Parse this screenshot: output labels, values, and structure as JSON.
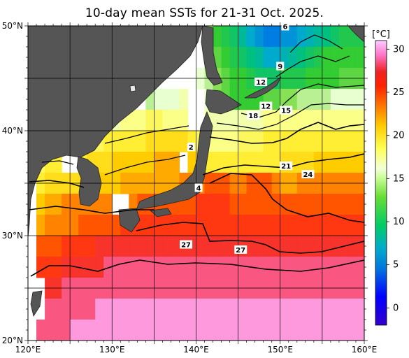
{
  "title": "10-day mean SSTs for 21-31 Oct. 2025.",
  "map": {
    "lon_ticks": [
      {
        "lon": 120,
        "label": "120°E"
      },
      {
        "lon": 130,
        "label": "130°E"
      },
      {
        "lon": 140,
        "label": "140°E"
      },
      {
        "lon": 150,
        "label": "150°E"
      },
      {
        "lon": 160,
        "label": "160°E"
      }
    ],
    "lat_ticks": [
      {
        "lat": 50,
        "label": "50°N"
      },
      {
        "lat": 40,
        "label": "40°N"
      },
      {
        "lat": 30,
        "label": "30°N"
      },
      {
        "lat": 20,
        "label": "20°N"
      }
    ],
    "lon_range": [
      120,
      160
    ],
    "lat_range": [
      20,
      50
    ],
    "land_color": "#555555",
    "grid_color": "#000000"
  },
  "colorbar": {
    "unit": "[°C]",
    "range": [
      -2,
      31
    ],
    "ticks": [
      {
        "value": 0,
        "label": "0"
      },
      {
        "value": 5,
        "label": "5"
      },
      {
        "value": 10,
        "label": "10"
      },
      {
        "value": 15,
        "label": "15"
      },
      {
        "value": 20,
        "label": "20"
      },
      {
        "value": 25,
        "label": "25"
      },
      {
        "value": 30,
        "label": "30"
      }
    ]
  },
  "contour_labels": [
    {
      "text": "6",
      "lon": 150.6,
      "lat": 49.9
    },
    {
      "text": "9",
      "lon": 150.0,
      "lat": 46.1
    },
    {
      "text": "12",
      "lon": 147.7,
      "lat": 44.6
    },
    {
      "text": "12",
      "lon": 148.3,
      "lat": 42.3
    },
    {
      "text": "15",
      "lon": 150.7,
      "lat": 41.9
    },
    {
      "text": "18",
      "lon": 146.8,
      "lat": 41.4
    },
    {
      "text": "2",
      "lon": 139.4,
      "lat": 38.4
    },
    {
      "text": "21",
      "lon": 150.7,
      "lat": 36.6
    },
    {
      "text": "24",
      "lon": 153.3,
      "lat": 35.8
    },
    {
      "text": "4",
      "lon": 140.3,
      "lat": 34.5
    },
    {
      "text": "27",
      "lon": 138.8,
      "lat": 29.1
    },
    {
      "text": "27",
      "lon": 145.3,
      "lat": 28.6
    }
  ],
  "sst_field": [
    {
      "lat": 49,
      "values": [
        null,
        null,
        null,
        null,
        null,
        null,
        null,
        null,
        null,
        null,
        null,
        null,
        null,
        null,
        null,
        null,
        null,
        null,
        null,
        null,
        null,
        14,
        12,
        11,
        10,
        8,
        6,
        5,
        4,
        4,
        5,
        5,
        6,
        7,
        8,
        9,
        10,
        11,
        11,
        11
      ]
    },
    {
      "lat": 47,
      "values": [
        null,
        null,
        null,
        null,
        null,
        null,
        null,
        null,
        null,
        null,
        null,
        null,
        null,
        null,
        null,
        null,
        null,
        null,
        null,
        null,
        null,
        14,
        13,
        12,
        11,
        10,
        9,
        8,
        6,
        6,
        7,
        8,
        9,
        10,
        11,
        12,
        12,
        12,
        12,
        12
      ]
    },
    {
      "lat": 45,
      "values": [
        null,
        null,
        null,
        null,
        null,
        null,
        null,
        null,
        null,
        null,
        null,
        null,
        null,
        null,
        null,
        null,
        null,
        null,
        null,
        null,
        16,
        15,
        14,
        13,
        12,
        12,
        11,
        10,
        10,
        10,
        11,
        11,
        11,
        12,
        12,
        12,
        12,
        13,
        13,
        13
      ]
    },
    {
      "lat": 43,
      "values": [
        null,
        null,
        null,
        null,
        null,
        null,
        null,
        null,
        null,
        null,
        null,
        null,
        null,
        null,
        15,
        16,
        16,
        16,
        17,
        null,
        null,
        16,
        14,
        13,
        12,
        12,
        12,
        12,
        13,
        13,
        14,
        14,
        15,
        15,
        15,
        15,
        16,
        16,
        16,
        16
      ]
    },
    {
      "lat": 41,
      "values": [
        null,
        null,
        null,
        null,
        null,
        null,
        18,
        18,
        18,
        17,
        17,
        18,
        18,
        18,
        19,
        19,
        18,
        18,
        18,
        null,
        null,
        17,
        17,
        17,
        17,
        17,
        17,
        17,
        18,
        18,
        18,
        18,
        18,
        18,
        18,
        18,
        18,
        18,
        18,
        18
      ]
    },
    {
      "lat": 39,
      "values": [
        null,
        null,
        20,
        20,
        null,
        null,
        19,
        19,
        19,
        20,
        20,
        20,
        20,
        20,
        21,
        21,
        21,
        21,
        21,
        20,
        19,
        18,
        18,
        18,
        18,
        19,
        19,
        19,
        20,
        20,
        20,
        20,
        20,
        20,
        20,
        20,
        20,
        20,
        20,
        20
      ]
    },
    {
      "lat": 37,
      "values": [
        null,
        19,
        20,
        20,
        null,
        null,
        20,
        21,
        21,
        21,
        22,
        22,
        22,
        22,
        22,
        23,
        23,
        23,
        null,
        22,
        21,
        20,
        20,
        20,
        20,
        20,
        20,
        20,
        20,
        20,
        21,
        21,
        21,
        21,
        22,
        22,
        22,
        22,
        22,
        22
      ]
    },
    {
      "lat": 35,
      "values": [
        null,
        20,
        21,
        21,
        21,
        21,
        21,
        22,
        22,
        22,
        22,
        23,
        23,
        23,
        23,
        23,
        23,
        23,
        24,
        24,
        24,
        25,
        25,
        25,
        24,
        24,
        25,
        25,
        25,
        24,
        23,
        23,
        24,
        24,
        24,
        24,
        24,
        24,
        24,
        24
      ]
    },
    {
      "lat": 33,
      "values": [
        null,
        22,
        23,
        23,
        24,
        24,
        24,
        24,
        24,
        24,
        null,
        null,
        24,
        25,
        25,
        25,
        25,
        25,
        25,
        25,
        26,
        26,
        26,
        26,
        25,
        25,
        25,
        25,
        25,
        25,
        25,
        25,
        25,
        25,
        25,
        25,
        25,
        25,
        25,
        25
      ]
    },
    {
      "lat": 31,
      "values": [
        null,
        23,
        24,
        24,
        24,
        24,
        25,
        25,
        25,
        25,
        25,
        26,
        26,
        26,
        26,
        26,
        26,
        26,
        26,
        26,
        26,
        26,
        26,
        26,
        26,
        26,
        26,
        26,
        26,
        26,
        26,
        26,
        26,
        26,
        26,
        26,
        26,
        26,
        26,
        26
      ]
    },
    {
      "lat": 29,
      "values": [
        null,
        25,
        25,
        25,
        26,
        26,
        26,
        26,
        27,
        27,
        27,
        27,
        27,
        27,
        27,
        27,
        27,
        27,
        27,
        27,
        27,
        27,
        27,
        27,
        27,
        27,
        27,
        27,
        27,
        27,
        27,
        27,
        27,
        27,
        27,
        27,
        27,
        27,
        27,
        27
      ]
    },
    {
      "lat": 27,
      "values": [
        null,
        26,
        26,
        26,
        27,
        27,
        27,
        27,
        27,
        28,
        28,
        28,
        28,
        28,
        28,
        28,
        28,
        28,
        28,
        28,
        28,
        28,
        28,
        28,
        28,
        28,
        28,
        28,
        28,
        28,
        28,
        28,
        28,
        28,
        28,
        28,
        28,
        28,
        28,
        28
      ]
    },
    {
      "lat": 25,
      "values": [
        null,
        null,
        27,
        27,
        28,
        28,
        28,
        28,
        28,
        28,
        28,
        28,
        28,
        28,
        28,
        28,
        28,
        28,
        28,
        28,
        28,
        28,
        28,
        28,
        28,
        28,
        28,
        28,
        28,
        28,
        28,
        28,
        28,
        28,
        28,
        28,
        28,
        28,
        28,
        28
      ]
    },
    {
      "lat": 23,
      "values": [
        null,
        null,
        28,
        28,
        28,
        28,
        28,
        28,
        29,
        29,
        29,
        29,
        29,
        29,
        29,
        29,
        29,
        29,
        29,
        29,
        29,
        29,
        29,
        29,
        29,
        29,
        29,
        29,
        29,
        29,
        29,
        29,
        29,
        29,
        29,
        29,
        29,
        29,
        29,
        29
      ]
    },
    {
      "lat": 21,
      "values": [
        null,
        28,
        28,
        28,
        28,
        29,
        29,
        29,
        29,
        29,
        29,
        29,
        29,
        29,
        29,
        29,
        29,
        29,
        29,
        29,
        29,
        29,
        29,
        29,
        29,
        29,
        29,
        29,
        29,
        29,
        29,
        29,
        29,
        29,
        29,
        29,
        29,
        29,
        29,
        29
      ]
    }
  ]
}
